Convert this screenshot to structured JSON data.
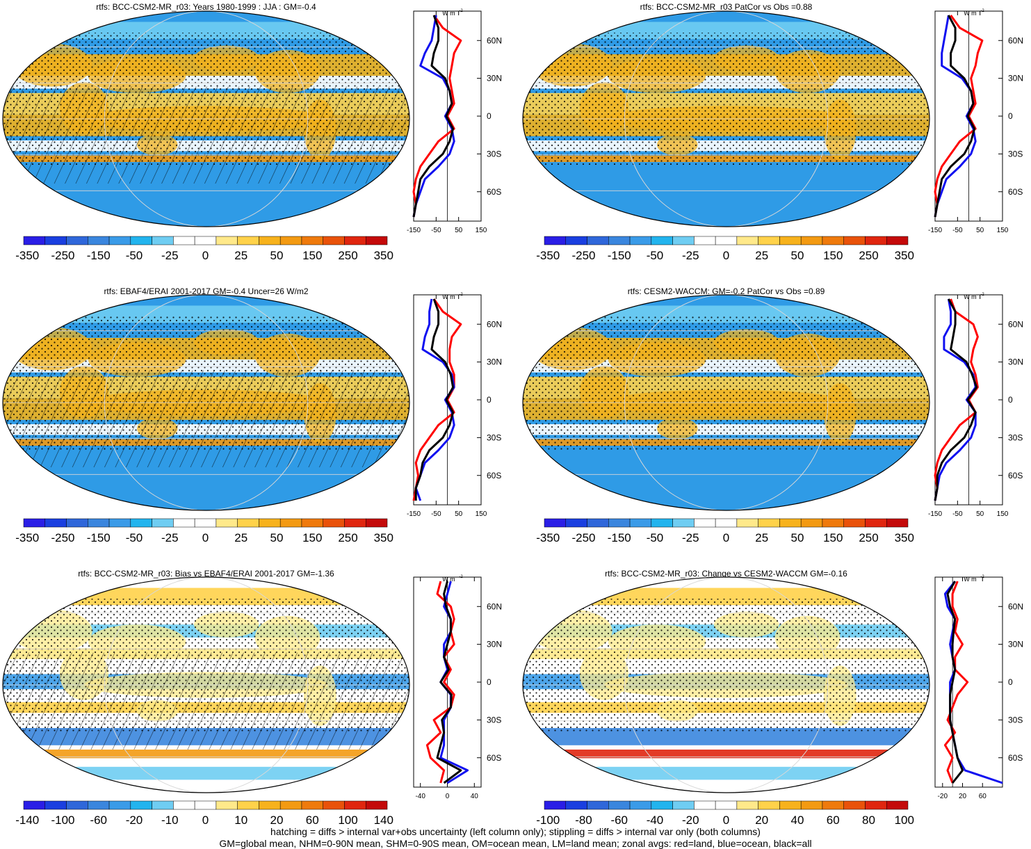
{
  "colors": {
    "ocean": "#2f9be6",
    "land": "#f2b21c",
    "zonal_land": "#ff0000",
    "zonal_ocean": "#1010f0",
    "zonal_all": "#000000",
    "bias_negative": "#1e64d8",
    "bias_positive": "#e01010"
  },
  "footer": {
    "line1": "hatching = diffs > internal var+obs uncertainty (left column only); stippling = diffs > internal var only (both columns)",
    "line2": "GM=global mean, NHM=0-90N mean, SHM=0-90S mean, OM=ocean mean, LM=land mean; zonal avgs: red=land, blue=ocean, black=all"
  },
  "chart_data": [
    {
      "type": "heatmap",
      "title": "rtfs: BCC-CSM2-MR_r03: Years 1980-1999 : JJA : GM=-0.4",
      "colorbar_labels": [
        "-350",
        "-250",
        "-150",
        "-50",
        "-25",
        "0",
        "25",
        "50",
        "150",
        "250",
        "350"
      ],
      "zonal_unit": "W m",
      "zonal_unit_exp": "-2",
      "zonal_xticks": [
        "-150",
        "-50",
        "50",
        "150"
      ],
      "zonal_xrange": [
        -150,
        150
      ],
      "zonal_ytick_labels": [
        "60N",
        "30N",
        "0",
        "30S",
        "60S"
      ],
      "zonal_lat_range": [
        -80,
        80
      ],
      "series": [
        {
          "lat": [
            80,
            70,
            60,
            50,
            40,
            30,
            20,
            10,
            0,
            -10,
            -20,
            -30,
            -40,
            -50,
            -60,
            -70,
            -80
          ],
          "values": [
            -60,
            -20,
            60,
            30,
            20,
            10,
            20,
            30,
            0,
            30,
            -40,
            -80,
            -120,
            -140,
            -150,
            -140,
            -150
          ]
        },
        {
          "lat": [
            80,
            70,
            60,
            50,
            40,
            30,
            20,
            10,
            0,
            -10,
            -20,
            -30,
            -40,
            -50,
            -60,
            -70,
            -80
          ],
          "values": [
            -50,
            -60,
            -70,
            -100,
            -120,
            -20,
            10,
            20,
            -10,
            20,
            30,
            10,
            -40,
            -100,
            -120,
            -140,
            -150
          ]
        },
        {
          "lat": [
            80,
            70,
            60,
            50,
            40,
            30,
            20,
            10,
            0,
            -10,
            -20,
            -30,
            -40,
            -50,
            -60,
            -70,
            -80
          ],
          "values": [
            -60,
            -40,
            -40,
            -60,
            -70,
            -10,
            10,
            20,
            -5,
            25,
            10,
            -20,
            -80,
            -120,
            -130,
            -140,
            -150
          ]
        }
      ]
    },
    {
      "type": "heatmap",
      "title": "rtfs: BCC-CSM2-MR_r03 PatCor vs Obs =0.88",
      "colorbar_labels": [
        "-350",
        "-250",
        "-150",
        "-50",
        "-25",
        "0",
        "25",
        "50",
        "150",
        "250",
        "350"
      ],
      "zonal_unit": "W m",
      "zonal_unit_exp": "-2",
      "zonal_xticks": [
        "-150",
        "-50",
        "50",
        "150"
      ],
      "zonal_xrange": [
        -150,
        150
      ],
      "zonal_ytick_labels": [
        "60N",
        "30N",
        "0",
        "30S",
        "60S"
      ],
      "zonal_lat_range": [
        -80,
        80
      ],
      "series": [
        {
          "lat": [
            80,
            70,
            60,
            50,
            40,
            30,
            20,
            10,
            0,
            -10,
            -20,
            -30,
            -40,
            -50,
            -60,
            -70,
            -80
          ],
          "values": [
            -80,
            -40,
            60,
            40,
            30,
            10,
            20,
            30,
            0,
            30,
            -40,
            -80,
            -120,
            -140,
            -150,
            -140,
            -150
          ]
        },
        {
          "lat": [
            80,
            70,
            60,
            50,
            40,
            30,
            20,
            10,
            0,
            -10,
            -20,
            -30,
            -40,
            -50,
            -60,
            -70,
            -80
          ],
          "values": [
            -90,
            -100,
            -110,
            -120,
            -120,
            -30,
            10,
            20,
            -10,
            20,
            30,
            10,
            -40,
            -100,
            -120,
            -140,
            -150
          ]
        },
        {
          "lat": [
            80,
            70,
            60,
            50,
            40,
            30,
            20,
            10,
            0,
            -10,
            -20,
            -30,
            -40,
            -50,
            -60,
            -70,
            -80
          ],
          "values": [
            -90,
            -60,
            -60,
            -80,
            -80,
            -20,
            10,
            20,
            -5,
            25,
            10,
            -20,
            -80,
            -120,
            -130,
            -140,
            -150
          ]
        }
      ]
    },
    {
      "type": "heatmap",
      "title": "rtfs: EBAF4/ERAI 2001-2017 GM=-0.4 Uncer=26 W/m2",
      "colorbar_labels": [
        "-350",
        "-250",
        "-150",
        "-50",
        "-25",
        "0",
        "25",
        "50",
        "150",
        "250",
        "350"
      ],
      "zonal_unit": "W m",
      "zonal_unit_exp": "-2",
      "zonal_xticks": [
        "-150",
        "-50",
        "50",
        "150"
      ],
      "zonal_xrange": [
        -150,
        150
      ],
      "zonal_ytick_labels": [
        "60N",
        "30N",
        "0",
        "30S",
        "60S"
      ],
      "zonal_lat_range": [
        -80,
        80
      ],
      "series": [
        {
          "lat": [
            80,
            70,
            60,
            50,
            40,
            30,
            20,
            10,
            0,
            -10,
            -20,
            -30,
            -40,
            -50,
            -60,
            -70,
            -80
          ],
          "values": [
            -60,
            -20,
            60,
            20,
            10,
            10,
            30,
            30,
            0,
            30,
            -40,
            -80,
            -120,
            -140,
            -130,
            -140,
            -150
          ]
        },
        {
          "lat": [
            80,
            70,
            60,
            50,
            40,
            30,
            20,
            10,
            0,
            -10,
            -20,
            -30,
            -40,
            -50,
            -60,
            -70,
            -80
          ],
          "values": [
            -70,
            -80,
            -80,
            -100,
            -110,
            -20,
            20,
            30,
            -10,
            20,
            30,
            10,
            -40,
            -100,
            -120,
            -140,
            -120
          ]
        },
        {
          "lat": [
            80,
            70,
            60,
            50,
            40,
            30,
            20,
            10,
            0,
            -10,
            -20,
            -30,
            -40,
            -50,
            -60,
            -70,
            -80
          ],
          "values": [
            -60,
            -40,
            -40,
            -60,
            -70,
            -10,
            15,
            25,
            -5,
            25,
            10,
            -20,
            -80,
            -110,
            -120,
            -140,
            -140
          ]
        }
      ]
    },
    {
      "type": "heatmap",
      "title": "rtfs: CESM2-WACCM: GM=-0.2 PatCor vs Obs =0.89",
      "colorbar_labels": [
        "-350",
        "-250",
        "-150",
        "-50",
        "-25",
        "0",
        "25",
        "50",
        "150",
        "250",
        "350"
      ],
      "zonal_unit": "W m",
      "zonal_unit_exp": "-2",
      "zonal_xticks": [
        "-150",
        "-50",
        "50",
        "150"
      ],
      "zonal_xrange": [
        -150,
        150
      ],
      "zonal_ytick_labels": [
        "60N",
        "30N",
        "0",
        "30S",
        "60S"
      ],
      "zonal_lat_range": [
        -80,
        80
      ],
      "series": [
        {
          "lat": [
            80,
            70,
            60,
            50,
            40,
            30,
            20,
            10,
            0,
            -10,
            -20,
            -30,
            -40,
            -50,
            -60,
            -70,
            -80
          ],
          "values": [
            -80,
            -60,
            20,
            40,
            20,
            10,
            30,
            40,
            0,
            30,
            -40,
            -80,
            -120,
            -140,
            -150,
            -140,
            -150
          ]
        },
        {
          "lat": [
            80,
            70,
            60,
            50,
            40,
            30,
            20,
            10,
            0,
            -10,
            -20,
            -30,
            -40,
            -50,
            -60,
            -70,
            -80
          ],
          "values": [
            -90,
            -80,
            -80,
            -110,
            -110,
            -20,
            20,
            30,
            -10,
            30,
            30,
            10,
            -40,
            -100,
            -130,
            -140,
            -150
          ]
        },
        {
          "lat": [
            80,
            70,
            60,
            50,
            40,
            30,
            20,
            10,
            0,
            -10,
            -20,
            -30,
            -40,
            -50,
            -60,
            -70,
            -80
          ],
          "values": [
            -90,
            -60,
            -60,
            -70,
            -80,
            -10,
            15,
            35,
            -5,
            30,
            10,
            -20,
            -80,
            -120,
            -140,
            -140,
            -150
          ]
        }
      ]
    },
    {
      "type": "heatmap",
      "title": "rtfs: BCC-CSM2-MR_r03: Bias vs EBAF4/ERAI 2001-2017 GM=-1.36",
      "colorbar_labels": [
        "-140",
        "-100",
        "-60",
        "-20",
        "-10",
        "0",
        "10",
        "20",
        "60",
        "100",
        "140"
      ],
      "zonal_unit": "W m",
      "zonal_unit_exp": "-2",
      "zonal_xticks": [
        "-40",
        "0",
        "40"
      ],
      "zonal_xrange": [
        -50,
        50
      ],
      "zonal_ytick_labels": [
        "60N",
        "30N",
        "0",
        "30S",
        "60S"
      ],
      "zonal_lat_range": [
        -80,
        80
      ],
      "series": [
        {
          "lat": [
            80,
            70,
            60,
            50,
            40,
            30,
            20,
            10,
            0,
            -10,
            -20,
            -30,
            -40,
            -50,
            -60,
            -70,
            -80
          ],
          "values": [
            -10,
            -15,
            5,
            10,
            5,
            10,
            -5,
            5,
            -5,
            10,
            5,
            -20,
            -10,
            -30,
            -25,
            -5,
            -10
          ]
        },
        {
          "lat": [
            80,
            70,
            60,
            50,
            40,
            30,
            20,
            10,
            0,
            -10,
            -20,
            -30,
            -40,
            -50,
            -60,
            -70,
            -80
          ],
          "values": [
            5,
            0,
            -5,
            5,
            5,
            -5,
            -5,
            0,
            -10,
            5,
            5,
            -5,
            -5,
            -5,
            -10,
            30,
            0
          ]
        },
        {
          "lat": [
            80,
            70,
            60,
            50,
            40,
            30,
            20,
            10,
            0,
            -10,
            -20,
            -30,
            -40,
            -50,
            -60,
            -70,
            -80
          ],
          "values": [
            0,
            -5,
            -2,
            5,
            5,
            0,
            -5,
            2,
            -10,
            6,
            5,
            -8,
            -5,
            -10,
            -15,
            20,
            -5
          ]
        }
      ]
    },
    {
      "type": "heatmap",
      "title": "rtfs: BCC-CSM2-MR_r03: Change vs CESM2-WACCM GM=-0.16",
      "colorbar_labels": [
        "-100",
        "-80",
        "-60",
        "-40",
        "-20",
        "0",
        "20",
        "40",
        "60",
        "80",
        "100"
      ],
      "zonal_unit": "W m",
      "zonal_unit_exp": "-2",
      "zonal_xticks": [
        "-20",
        "20",
        "60"
      ],
      "zonal_xrange": [
        -35,
        100
      ],
      "zonal_ytick_labels": [
        "60N",
        "30N",
        "0",
        "30S",
        "60S"
      ],
      "zonal_lat_range": [
        -80,
        80
      ],
      "series": [
        {
          "lat": [
            80,
            70,
            60,
            50,
            40,
            30,
            20,
            10,
            0,
            -10,
            -20,
            -30,
            -40,
            -50,
            -60,
            -70,
            -80
          ],
          "values": [
            10,
            0,
            0,
            10,
            5,
            20,
            5,
            5,
            30,
            10,
            0,
            -10,
            5,
            -15,
            0,
            -10,
            0
          ]
        },
        {
          "lat": [
            80,
            70,
            60,
            50,
            40,
            30,
            20,
            10,
            0,
            -10,
            -20,
            -30,
            -40,
            -50,
            -60,
            -70,
            -80
          ],
          "values": [
            5,
            -15,
            -10,
            5,
            0,
            -5,
            0,
            5,
            -5,
            -5,
            -5,
            -5,
            0,
            5,
            10,
            25,
            100
          ]
        },
        {
          "lat": [
            80,
            70,
            60,
            50,
            40,
            30,
            20,
            10,
            0,
            -10,
            -20,
            -30,
            -40,
            -50,
            -60,
            -70,
            -80
          ],
          "values": [
            5,
            -10,
            -5,
            5,
            2,
            0,
            0,
            5,
            0,
            -5,
            -5,
            -5,
            0,
            5,
            10,
            20,
            0
          ]
        }
      ]
    }
  ]
}
